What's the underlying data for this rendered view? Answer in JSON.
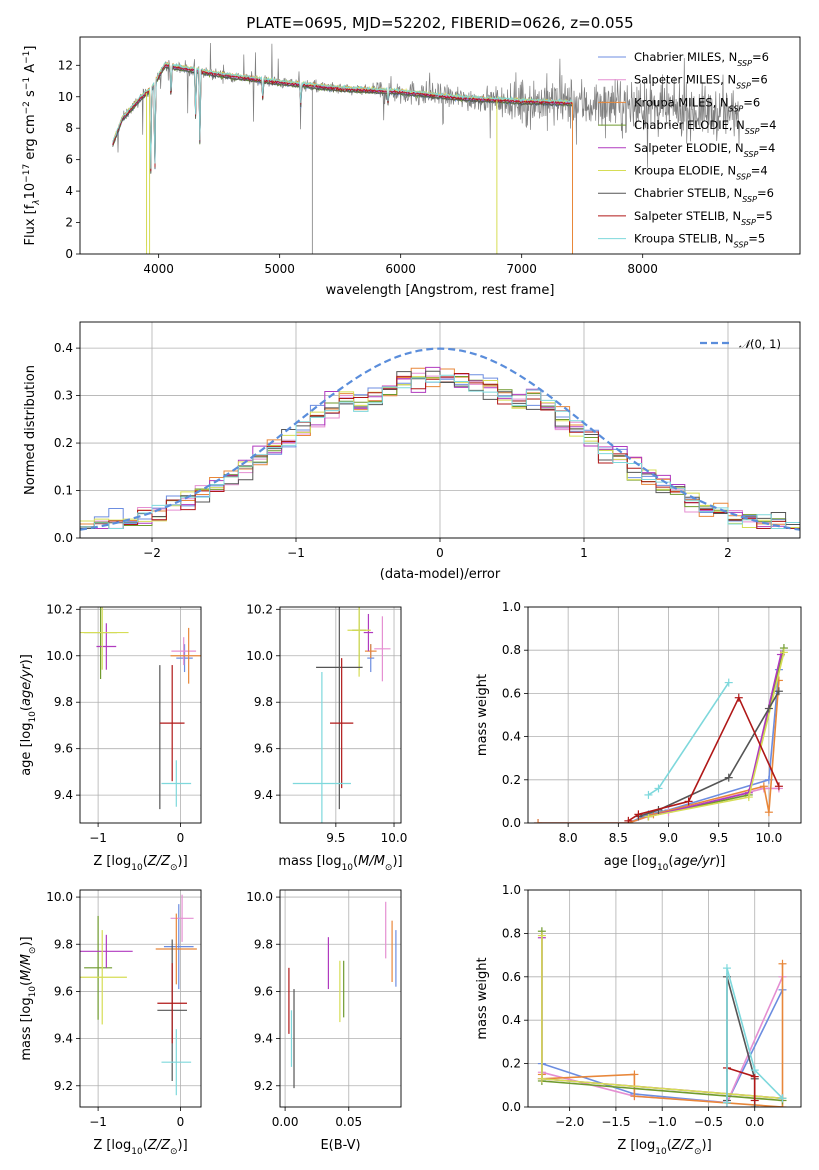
{
  "figure_title": "PLATE=0695, MJD=52202, FIBERID=0626, z=0.055",
  "colors": {
    "Chabrier MILES": "#6c8de0",
    "Salpeter MILES": "#e58fd2",
    "Kroupa MILES": "#e8873a",
    "Chabrier ELODIE": "#6f9a2e",
    "Salpeter ELODIE": "#b03abf",
    "Kroupa ELODIE": "#d6dd55",
    "Chabrier STELIB": "#555555",
    "Salpeter STELIB": "#b01818",
    "Kroupa STELIB": "#7ed8dc",
    "data": "#7f7f7f",
    "normal": "#5a8ddb",
    "grid": "#b0b0b0"
  },
  "chart_data": [
    {
      "panel": "spectrum",
      "type": "line",
      "xlabel": "wavelength [Angstrom, rest frame]",
      "ylabel": "Flux [f",
      "xlim": [
        3350,
        9300
      ],
      "ylim": [
        0,
        13.8
      ],
      "xticks": [
        4000,
        5000,
        6000,
        7000,
        8000
      ],
      "yticks": [
        0,
        2,
        4,
        6,
        8,
        10,
        12
      ],
      "grid": false,
      "legend": "top-right",
      "series": [
        {
          "name": "Chabrier MILES, N",
          "n": "=6"
        },
        {
          "name": "Salpeter MILES, N",
          "n": "=6"
        },
        {
          "name": "Kroupa MILES, N",
          "n": "=6"
        },
        {
          "name": "Chabrier ELODIE, N",
          "n": "=4"
        },
        {
          "name": "Salpeter ELODIE, N",
          "n": "=4"
        },
        {
          "name": "Kroupa ELODIE, N",
          "n": "=4"
        },
        {
          "name": "Chabrier STELIB, N",
          "n": "=6"
        },
        {
          "name": "Salpeter STELIB, N",
          "n": "=5"
        },
        {
          "name": "Kroupa STELIB, N",
          "n": "=5"
        }
      ],
      "continuum": [
        [
          3620,
          7.0
        ],
        [
          3700,
          8.6
        ],
        [
          3850,
          9.9
        ],
        [
          3950,
          10.6
        ],
        [
          4050,
          12.0
        ],
        [
          4200,
          11.8
        ],
        [
          4500,
          11.4
        ],
        [
          5000,
          10.9
        ],
        [
          5500,
          10.5
        ],
        [
          6000,
          10.3
        ],
        [
          6500,
          9.9
        ],
        [
          7000,
          9.7
        ],
        [
          7400,
          9.6
        ],
        [
          7800,
          9.4
        ],
        [
          8200,
          9.2
        ],
        [
          8800,
          8.9
        ]
      ],
      "absorptions": [
        [
          3934,
          4.6
        ],
        [
          3969,
          4.9
        ],
        [
          4102,
          9.8
        ],
        [
          4305,
          8.8
        ],
        [
          4341,
          6.6
        ],
        [
          4861,
          9.8
        ],
        [
          5175,
          9.5
        ],
        [
          5895,
          9.6
        ]
      ],
      "model_end": 7420,
      "drops": [
        [
          3900,
          0
        ],
        [
          3925,
          0
        ],
        [
          6795,
          0
        ],
        [
          7420,
          0
        ]
      ]
    },
    {
      "panel": "residuals",
      "type": "step",
      "xlabel": "(data-model)/error",
      "ylabel": "Normed distribution",
      "xlim": [
        -2.5,
        2.5
      ],
      "ylim": [
        0,
        0.455
      ],
      "xticks": [
        -2,
        -1,
        0,
        1,
        2
      ],
      "yticks": [
        0.0,
        0.1,
        0.2,
        0.3,
        0.4
      ],
      "grid": true,
      "legend_label": "(0, 1)",
      "legend": "top-right",
      "bin_width": 0.1
    },
    {
      "panel": "age-vs-Z",
      "type": "errorbar",
      "xlabel": "Z [log",
      "ylabel": "age  [log",
      "xlim": [
        -1.22,
        0.25
      ],
      "ylim": [
        9.28,
        10.21
      ],
      "xticks": [
        -1,
        0
      ],
      "yticks": [
        9.4,
        9.6,
        9.8,
        10.0,
        10.2
      ],
      "grid": true,
      "points": [
        {
          "model": "Chabrier MILES",
          "x": 0.05,
          "xe": 0.1,
          "y": 9.99,
          "ye": 0.06
        },
        {
          "model": "Salpeter MILES",
          "x": 0.04,
          "xe": 0.15,
          "y": 10.02,
          "ye": 0.06
        },
        {
          "model": "Kroupa MILES",
          "x": 0.1,
          "xe": 0.22,
          "y": 10.0,
          "ye": 0.12
        },
        {
          "model": "Chabrier ELODIE",
          "x": -0.97,
          "xe": 0.2,
          "y": 10.1,
          "ye": 0.2
        },
        {
          "model": "Salpeter ELODIE",
          "x": -0.9,
          "xe": 0.12,
          "y": 10.04,
          "ye": 0.1
        },
        {
          "model": "Kroupa ELODIE",
          "x": -0.95,
          "xe": 0.32,
          "y": 10.1,
          "ye": 0.16
        },
        {
          "model": "Chabrier STELIB",
          "x": -0.25,
          "xe": 0.0,
          "y": 9.65,
          "ye": 0.31
        },
        {
          "model": "Salpeter STELIB",
          "x": -0.1,
          "xe": 0.15,
          "y": 9.71,
          "ye": 0.25
        },
        {
          "model": "Kroupa STELIB",
          "x": -0.05,
          "xe": 0.18,
          "y": 9.45,
          "ye": 0.1
        }
      ]
    },
    {
      "panel": "age-vs-mass",
      "type": "errorbar",
      "xlabel": "mass [log",
      "ylabel": "",
      "xlim": [
        9.02,
        10.06
      ],
      "ylim": [
        9.28,
        10.21
      ],
      "xticks": [
        9.5,
        10.0
      ],
      "yticks": [
        9.4,
        9.6,
        9.8,
        10.0,
        10.2
      ],
      "grid": true,
      "points": [
        {
          "model": "Chabrier MILES",
          "x": 9.8,
          "xe": 0.03,
          "y": 9.99,
          "ye": 0.06
        },
        {
          "model": "Salpeter MILES",
          "x": 9.9,
          "xe": 0.07,
          "y": 10.03,
          "ye": 0.14
        },
        {
          "model": "Kroupa MILES",
          "x": 9.8,
          "xe": 0.05,
          "y": 10.02,
          "ye": 0.03
        },
        {
          "model": "Chabrier ELODIE",
          "x": 9.7,
          "xe": 0.06,
          "y": 10.11,
          "ye": 0.17
        },
        {
          "model": "Salpeter ELODIE",
          "x": 9.78,
          "xe": 0.04,
          "y": 10.1,
          "ye": 0.08
        },
        {
          "model": "Kroupa ELODIE",
          "x": 9.7,
          "xe": 0.1,
          "y": 10.11,
          "ye": 0.2
        },
        {
          "model": "Chabrier STELIB",
          "x": 9.53,
          "xe": 0.2,
          "y": 9.95,
          "ye": 0.61
        },
        {
          "model": "Salpeter STELIB",
          "x": 9.55,
          "xe": 0.1,
          "y": 9.71,
          "ye": 0.28
        },
        {
          "model": "Kroupa STELIB",
          "x": 9.38,
          "xe": 0.25,
          "y": 9.45,
          "ye": 0.48
        }
      ]
    },
    {
      "panel": "mass-weight-vs-age",
      "type": "line",
      "xlabel": "age  [log",
      "ylabel": "mass weight",
      "xlim": [
        7.6,
        10.32
      ],
      "ylim": [
        0,
        1.0
      ],
      "xticks": [
        8.0,
        8.5,
        9.0,
        9.5,
        10.0
      ],
      "yticks": [
        0.0,
        0.2,
        0.4,
        0.6,
        0.8,
        1.0
      ],
      "grid": true,
      "series": [
        {
          "model": "Chabrier MILES",
          "x": [
            7.7,
            8.6,
            8.8,
            9.0,
            10.0,
            10.1
          ],
          "y": [
            0.0,
            0.0,
            0.04,
            0.06,
            0.2,
            0.71
          ]
        },
        {
          "model": "Salpeter MILES",
          "x": [
            7.7,
            8.6,
            8.8,
            9.0,
            9.95,
            10.1
          ],
          "y": [
            0.0,
            0.0,
            0.03,
            0.05,
            0.16,
            0.16
          ]
        },
        {
          "model": "Kroupa MILES",
          "x": [
            7.7,
            8.6,
            8.85,
            9.95,
            10.0,
            10.1
          ],
          "y": [
            0.0,
            0.0,
            0.04,
            0.17,
            0.05,
            0.66
          ]
        },
        {
          "model": "Chabrier ELODIE",
          "x": [
            8.8,
            9.8,
            10.15
          ],
          "y": [
            0.03,
            0.13,
            0.81
          ]
        },
        {
          "model": "Salpeter ELODIE",
          "x": [
            8.8,
            9.8,
            10.12
          ],
          "y": [
            0.03,
            0.14,
            0.78
          ]
        },
        {
          "model": "Kroupa ELODIE",
          "x": [
            8.8,
            9.8,
            10.15
          ],
          "y": [
            0.03,
            0.12,
            0.79
          ]
        },
        {
          "model": "Chabrier STELIB",
          "x": [
            8.7,
            8.9,
            9.6,
            10.0,
            10.1
          ],
          "y": [
            0.03,
            0.06,
            0.21,
            0.53,
            0.61
          ]
        },
        {
          "model": "Salpeter STELIB",
          "x": [
            8.6,
            8.7,
            9.2,
            9.7,
            10.1
          ],
          "y": [
            0.01,
            0.04,
            0.1,
            0.58,
            0.17
          ]
        },
        {
          "model": "Kroupa STELIB",
          "x": [
            8.8,
            8.9,
            9.6
          ],
          "y": [
            0.13,
            0.16,
            0.65
          ]
        }
      ]
    },
    {
      "panel": "mass-vs-Z",
      "type": "errorbar",
      "xlabel": "Z [log",
      "ylabel": "mass [log",
      "xlim": [
        -1.22,
        0.25
      ],
      "ylim": [
        9.11,
        10.03
      ],
      "xticks": [
        -1,
        0
      ],
      "yticks": [
        9.2,
        9.4,
        9.6,
        9.8,
        10.0
      ],
      "grid": true,
      "points": [
        {
          "model": "Chabrier MILES",
          "x": -0.02,
          "xe": 0.18,
          "y": 9.79,
          "ye": 0.18
        },
        {
          "model": "Salpeter MILES",
          "x": 0.02,
          "xe": 0.14,
          "y": 9.91,
          "ye": 0.1
        },
        {
          "model": "Kroupa MILES",
          "x": -0.05,
          "xe": 0.25,
          "y": 9.78,
          "ye": 0.15
        },
        {
          "model": "Chabrier ELODIE",
          "x": -1.0,
          "xe": 0.17,
          "y": 9.7,
          "ye": 0.22
        },
        {
          "model": "Salpeter ELODIE",
          "x": -0.9,
          "xe": 0.32,
          "y": 9.77,
          "ye": 0.07
        },
        {
          "model": "Kroupa ELODIE",
          "x": -0.95,
          "xe": 0.3,
          "y": 9.66,
          "ye": 0.2
        },
        {
          "model": "Chabrier STELIB",
          "x": -0.1,
          "xe": 0.18,
          "y": 9.52,
          "ye": 0.3
        },
        {
          "model": "Salpeter STELIB",
          "x": -0.1,
          "xe": 0.18,
          "y": 9.55,
          "ye": 0.17
        },
        {
          "model": "Kroupa STELIB",
          "x": -0.05,
          "xe": 0.18,
          "y": 9.3,
          "ye": 0.14
        }
      ]
    },
    {
      "panel": "mass-vs-EBV",
      "type": "errorbar",
      "xlabel": "E(B-V)",
      "ylabel": "",
      "xlim": [
        -0.004,
        0.091
      ],
      "ylim": [
        9.11,
        10.03
      ],
      "xticks": [
        0.0,
        0.05
      ],
      "yticks": [
        9.2,
        9.4,
        9.6,
        9.8,
        10.0
      ],
      "grid": true,
      "points": [
        {
          "model": "Chabrier MILES",
          "x": 0.087,
          "xe": 0,
          "y": 9.74,
          "ye": 0.12
        },
        {
          "model": "Salpeter MILES",
          "x": 0.079,
          "xe": 0,
          "y": 9.86,
          "ye": 0.12
        },
        {
          "model": "Kroupa MILES",
          "x": 0.084,
          "xe": 0,
          "y": 9.77,
          "ye": 0.13
        },
        {
          "model": "Chabrier ELODIE",
          "x": 0.046,
          "xe": 0,
          "y": 9.61,
          "ye": 0.12
        },
        {
          "model": "Salpeter ELODIE",
          "x": 0.034,
          "xe": 0,
          "y": 9.72,
          "ye": 0.11
        },
        {
          "model": "Kroupa ELODIE",
          "x": 0.043,
          "xe": 0,
          "y": 9.6,
          "ye": 0.13
        },
        {
          "model": "Chabrier STELIB",
          "x": 0.007,
          "xe": 0,
          "y": 9.4,
          "ye": 0.21
        },
        {
          "model": "Salpeter STELIB",
          "x": 0.003,
          "xe": 0,
          "y": 9.56,
          "ye": 0.14
        },
        {
          "model": "Kroupa STELIB",
          "x": 0.005,
          "xe": 0,
          "y": 9.4,
          "ye": 0.12
        }
      ]
    },
    {
      "panel": "mass-weight-vs-Z",
      "type": "line",
      "xlabel": "Z [log",
      "ylabel": "mass weight",
      "xlim": [
        -2.45,
        0.5
      ],
      "ylim": [
        0,
        1.0
      ],
      "xticks": [
        -2.0,
        -1.5,
        -1.0,
        -0.5,
        0.0
      ],
      "yticks": [
        0.0,
        0.2,
        0.4,
        0.6,
        0.8,
        1.0
      ],
      "grid": true,
      "series": [
        {
          "model": "Chabrier MILES",
          "x": [
            -2.3,
            -1.3,
            -0.3,
            0.3
          ],
          "y": [
            0.2,
            0.06,
            0.02,
            0.54
          ]
        },
        {
          "model": "Salpeter MILES",
          "x": [
            -2.3,
            -1.3,
            -0.3,
            0.3
          ],
          "y": [
            0.16,
            0.05,
            0.02,
            0.6
          ]
        },
        {
          "model": "Kroupa MILES",
          "x": [
            -2.3,
            -2.3,
            -1.3,
            -1.3,
            0.3,
            0.3
          ],
          "y": [
            0.15,
            0.13,
            0.15,
            0.05,
            0.0,
            0.66
          ]
        },
        {
          "model": "Chabrier ELODIE",
          "x": [
            -2.3,
            -2.3,
            0.3
          ],
          "y": [
            0.81,
            0.12,
            0.03
          ]
        },
        {
          "model": "Salpeter ELODIE",
          "x": [
            -2.3,
            -2.3,
            0.3
          ],
          "y": [
            0.78,
            0.13,
            0.04
          ]
        },
        {
          "model": "Kroupa ELODIE",
          "x": [
            -2.3,
            -2.3,
            0.3
          ],
          "y": [
            0.79,
            0.13,
            0.04
          ]
        },
        {
          "model": "Chabrier STELIB",
          "x": [
            -0.3,
            -0.3,
            0.0,
            0.0
          ],
          "y": [
            0.03,
            0.6,
            0.13,
            0.0
          ]
        },
        {
          "model": "Salpeter STELIB",
          "x": [
            -0.3,
            0.0,
            0.0
          ],
          "y": [
            0.18,
            0.14,
            0.03
          ]
        },
        {
          "model": "Kroupa STELIB",
          "x": [
            -0.3,
            -0.3,
            0.0,
            0.3
          ],
          "y": [
            0.02,
            0.64,
            0.17,
            0.04
          ]
        }
      ]
    }
  ]
}
